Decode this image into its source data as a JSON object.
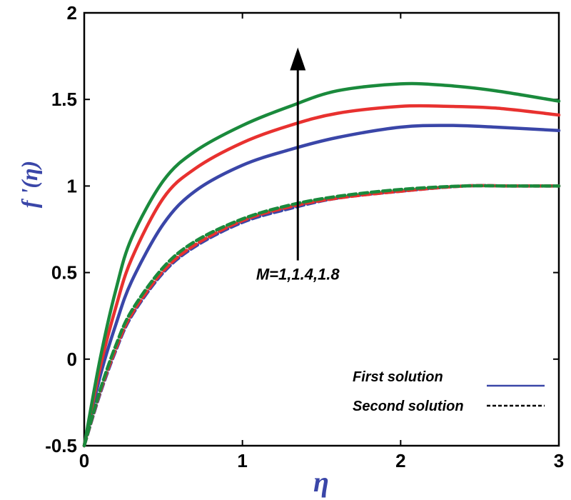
{
  "chart_data": {
    "type": "line",
    "title": "",
    "xlabel": "η",
    "ylabel": "f '(η)",
    "xlim": [
      0,
      3
    ],
    "ylim": [
      -0.5,
      2
    ],
    "xticks": [
      0,
      1,
      2,
      3
    ],
    "yticks": [
      -0.5,
      0,
      0.5,
      1,
      1.5,
      2
    ],
    "xtick_labels": [
      "0",
      "1",
      "2",
      "3"
    ],
    "ytick_labels": [
      "-0.5",
      "0",
      "0.5",
      "1",
      "1.5",
      "2"
    ],
    "grid": false,
    "legend_position": "bottom-right",
    "legend": [
      {
        "label": "First solution",
        "style": "solid"
      },
      {
        "label": "Second solution",
        "style": "dashed"
      }
    ],
    "annotation": {
      "text": "M=1,1.4,1.8",
      "arrow_direction": "up",
      "x": 1.35,
      "y_from": 0.57,
      "y_to": 1.8
    },
    "series": [
      {
        "name": "First solution, M=1",
        "color": "#3a46a8",
        "style": "solid",
        "x": [
          0,
          0.1,
          0.2,
          0.3,
          0.5,
          0.7,
          1.0,
          1.3,
          1.6,
          2.0,
          2.3,
          2.6,
          3.0
        ],
        "y": [
          -0.5,
          -0.1,
          0.2,
          0.45,
          0.78,
          0.97,
          1.12,
          1.21,
          1.28,
          1.34,
          1.35,
          1.34,
          1.32
        ]
      },
      {
        "name": "First solution, M=1.4",
        "color": "#e8312f",
        "style": "solid",
        "x": [
          0,
          0.1,
          0.2,
          0.3,
          0.5,
          0.7,
          1.0,
          1.3,
          1.6,
          2.0,
          2.3,
          2.6,
          3.0
        ],
        "y": [
          -0.5,
          -0.05,
          0.3,
          0.58,
          0.93,
          1.1,
          1.25,
          1.35,
          1.42,
          1.46,
          1.46,
          1.45,
          1.41
        ]
      },
      {
        "name": "First solution, M=1.8",
        "color": "#1a8a3c",
        "style": "solid",
        "x": [
          0,
          0.1,
          0.2,
          0.3,
          0.5,
          0.7,
          1.0,
          1.3,
          1.6,
          2.0,
          2.3,
          2.6,
          3.0
        ],
        "y": [
          -0.5,
          0.0,
          0.4,
          0.7,
          1.03,
          1.2,
          1.35,
          1.46,
          1.55,
          1.59,
          1.58,
          1.55,
          1.49
        ]
      },
      {
        "name": "Second solution, M=1",
        "color": "#3a46a8",
        "style": "dashed",
        "x": [
          0,
          0.1,
          0.2,
          0.3,
          0.5,
          0.7,
          1.0,
          1.3,
          1.6,
          2.0,
          2.4,
          2.7,
          3.0
        ],
        "y": [
          -0.5,
          -0.2,
          0.05,
          0.25,
          0.5,
          0.65,
          0.79,
          0.87,
          0.93,
          0.97,
          1.0,
          1.0,
          1.0
        ]
      },
      {
        "name": "Second solution, M=1.4",
        "color": "#e8312f",
        "style": "dashed",
        "x": [
          0,
          0.1,
          0.2,
          0.3,
          0.5,
          0.7,
          1.0,
          1.3,
          1.6,
          2.0,
          2.4,
          2.7,
          3.0
        ],
        "y": [
          -0.5,
          -0.19,
          0.06,
          0.26,
          0.51,
          0.66,
          0.8,
          0.88,
          0.93,
          0.97,
          1.0,
          1.0,
          1.0
        ]
      },
      {
        "name": "Second solution, M=1.8",
        "color": "#1a8a3c",
        "style": "dashed",
        "x": [
          0,
          0.1,
          0.2,
          0.3,
          0.5,
          0.7,
          1.0,
          1.3,
          1.6,
          2.0,
          2.4,
          2.7,
          3.0
        ],
        "y": [
          -0.5,
          -0.18,
          0.08,
          0.28,
          0.53,
          0.68,
          0.81,
          0.89,
          0.94,
          0.98,
          1.0,
          1.0,
          1.0
        ]
      }
    ]
  }
}
